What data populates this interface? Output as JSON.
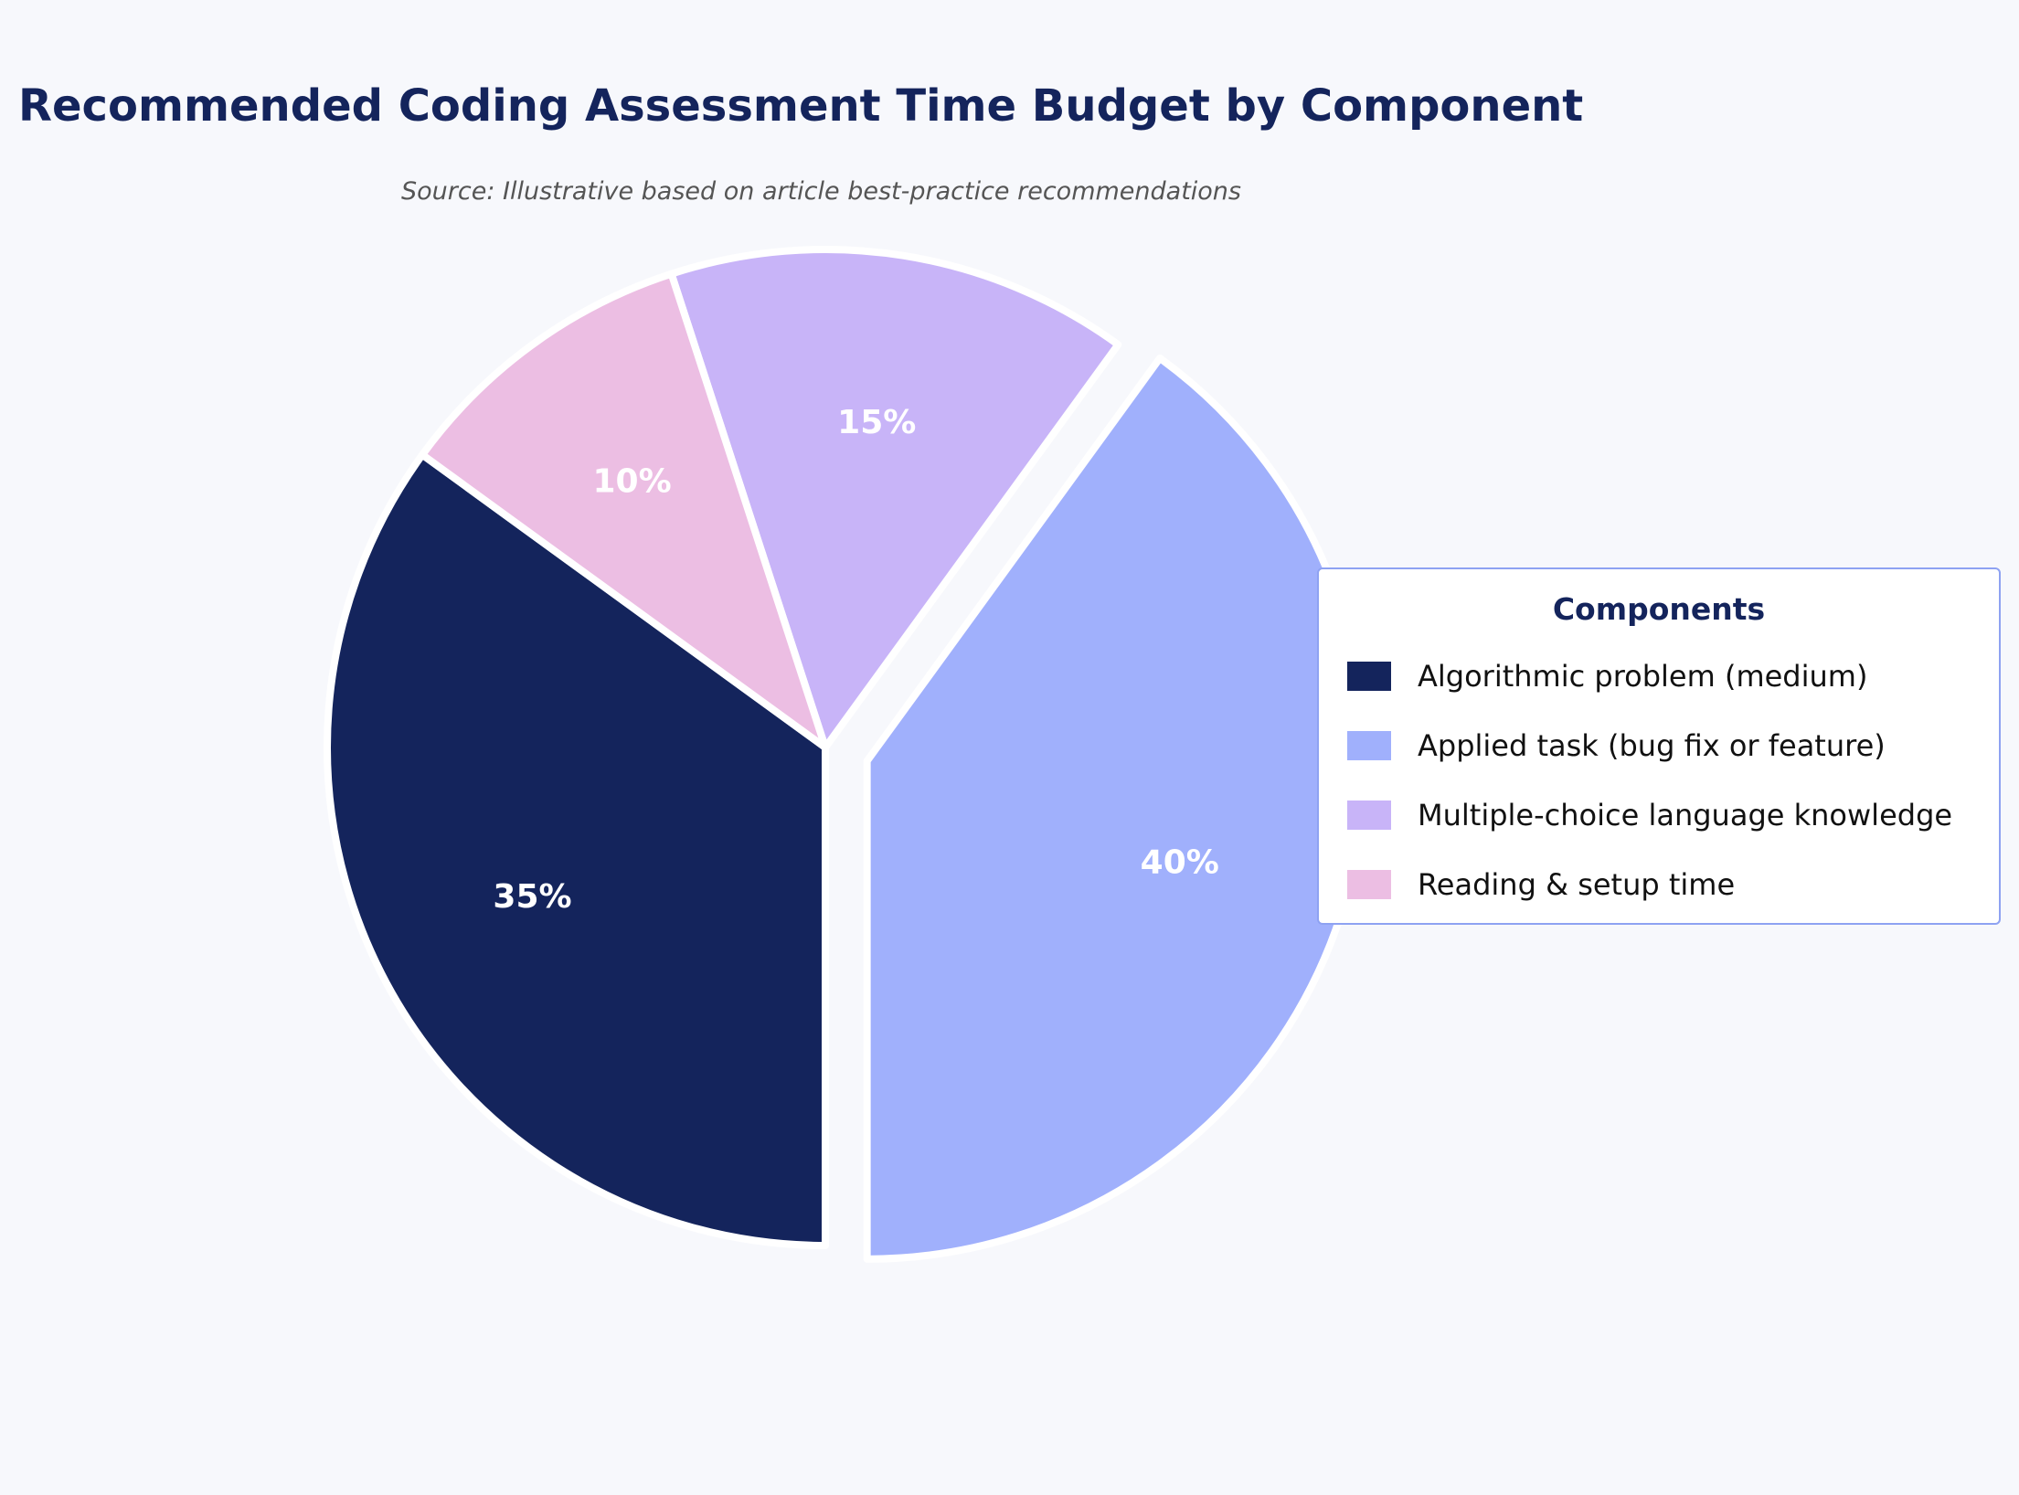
{
  "chart_data": {
    "type": "pie",
    "title": "Recommended Coding Assessment Time Budget by Component",
    "subtitle": "Source: Illustrative based on article best-practice recommendations",
    "categories": [
      "Algorithmic problem (medium)",
      "Applied task (bug fix or feature)",
      "Multiple-choice language knowledge",
      "Reading & setup time"
    ],
    "values": [
      35,
      40,
      15,
      10
    ],
    "value_labels": [
      "35%",
      "40%",
      "15%",
      "10%"
    ],
    "colors": [
      "#14245c",
      "#a0b0fc",
      "#c8b4f8",
      "#ecbee3"
    ],
    "exploded": [
      false,
      true,
      false,
      false
    ],
    "legend": {
      "title": "Components",
      "placement": "right"
    }
  }
}
